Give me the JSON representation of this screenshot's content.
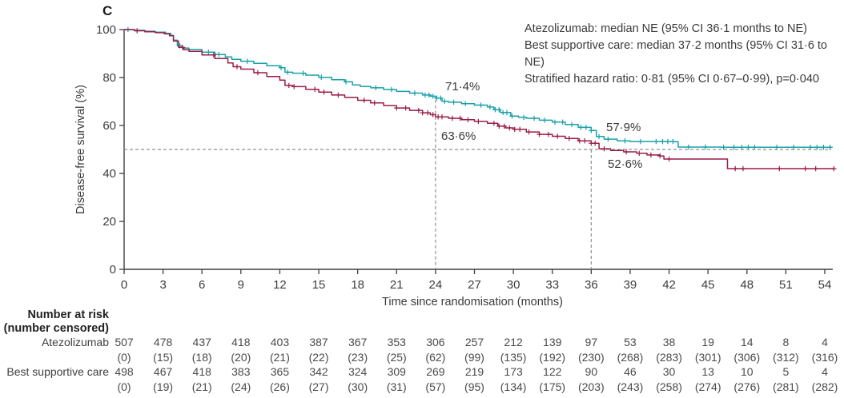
{
  "panel_label": "C",
  "colors": {
    "atezolizumab": "#18a0a8",
    "best_supportive_care": "#9c1c44",
    "axis": "#3f3f3f",
    "dashed_reference": "#8a9094",
    "text": "#3a3a3a"
  },
  "annotation": {
    "line1": "Atezolizumab: median NE (95% CI 36·1 months to NE)",
    "line2": "Best supportive care: median 37·2 months (95% CI 31·6 to NE)",
    "line3": "Stratified hazard ratio: 0·81 (95% CI 0·67–0·99), p=0·040"
  },
  "chart_data": {
    "type": "line",
    "subtype": "kaplan-meier-step",
    "title": "",
    "xlabel": "Time since randomisation (months)",
    "ylabel": "Disease-free survival (%)",
    "xlim": [
      0,
      54
    ],
    "ylim": [
      0,
      100
    ],
    "x_ticks": [
      0,
      3,
      6,
      9,
      12,
      15,
      18,
      21,
      24,
      27,
      30,
      33,
      36,
      39,
      42,
      45,
      48,
      51,
      54
    ],
    "y_ticks": [
      0,
      20,
      40,
      60,
      80,
      100
    ],
    "grid": false,
    "legend_position": "none",
    "reference_lines": {
      "horizontal_pct": 50,
      "vertical_months": [
        24,
        36
      ]
    },
    "landmarks": {
      "m24_atezo": "71·4%",
      "m24_bsc": "63·6%",
      "m36_atezo": "57·9%",
      "m36_bsc": "52·6%"
    },
    "series": [
      {
        "name": "Atezolizumab",
        "color": "#18a0a8",
        "points": [
          [
            0,
            100
          ],
          [
            0.8,
            99.7
          ],
          [
            1.6,
            99.3
          ],
          [
            2.4,
            98.9
          ],
          [
            3.2,
            98.4
          ],
          [
            3.6,
            97.6
          ],
          [
            3.8,
            95.6
          ],
          [
            4.1,
            93.2
          ],
          [
            4.5,
            92.3
          ],
          [
            5,
            91.7
          ],
          [
            6,
            90.6
          ],
          [
            7,
            89.6
          ],
          [
            7.8,
            88.6
          ],
          [
            8.3,
            87.6
          ],
          [
            9,
            86.8
          ],
          [
            10,
            85.9
          ],
          [
            11,
            84.9
          ],
          [
            12,
            84.1
          ],
          [
            12.4,
            82.2
          ],
          [
            13,
            81.8
          ],
          [
            14,
            81
          ],
          [
            15,
            80.1
          ],
          [
            16,
            79.1
          ],
          [
            17,
            78.2
          ],
          [
            17.6,
            76.9
          ],
          [
            18.2,
            76.3
          ],
          [
            19,
            75.7
          ],
          [
            20,
            75
          ],
          [
            21,
            74.2
          ],
          [
            22,
            73.5
          ],
          [
            23,
            72.7
          ],
          [
            23.6,
            72.2
          ],
          [
            24,
            71.4
          ],
          [
            24.5,
            70.1
          ],
          [
            25,
            69.7
          ],
          [
            26,
            69.1
          ],
          [
            27,
            68.5
          ],
          [
            28,
            67.7
          ],
          [
            28.5,
            66.6
          ],
          [
            29,
            65.4
          ],
          [
            29.8,
            63.9
          ],
          [
            30.4,
            63.4
          ],
          [
            31,
            63
          ],
          [
            32,
            62.2
          ],
          [
            33,
            61.4
          ],
          [
            34,
            60.4
          ],
          [
            35,
            59.2
          ],
          [
            36,
            57.9
          ],
          [
            36.4,
            55.4
          ],
          [
            37,
            54.3
          ],
          [
            38,
            53.6
          ],
          [
            39,
            53.3
          ],
          [
            42.5,
            53.2
          ],
          [
            42.7,
            51
          ],
          [
            46,
            50.9
          ],
          [
            54.6,
            50.9
          ]
        ],
        "censor_months": [
          0.3,
          4.3,
          6.5,
          7.3,
          9.5,
          12.1,
          12.6,
          13.8,
          15.2,
          17.1,
          19.4,
          20.6,
          22.4,
          23.2,
          23.5,
          23.8,
          24.1,
          24.4,
          24.7,
          25.4,
          26.3,
          27.5,
          28.2,
          28.6,
          28.9,
          29.2,
          29.5,
          29.9,
          30.8,
          31.6,
          32.4,
          33.2,
          33.8,
          34.5,
          35.2,
          35.6,
          36,
          36.6,
          37.3,
          38.6,
          39.8,
          41,
          41.5,
          41.9,
          42.3,
          43.5,
          44.8,
          46.2,
          47,
          47.6,
          48.1,
          48.6,
          50.3,
          51.6,
          52.9,
          53.4,
          53.9,
          54.4
        ]
      },
      {
        "name": "Best supportive care",
        "color": "#9c1c44",
        "points": [
          [
            0,
            100
          ],
          [
            0.8,
            99.5
          ],
          [
            1.6,
            99.1
          ],
          [
            2.4,
            98.7
          ],
          [
            3.1,
            98.2
          ],
          [
            3.5,
            97.4
          ],
          [
            3.8,
            95.2
          ],
          [
            4.2,
            92.6
          ],
          [
            4.6,
            91.6
          ],
          [
            5,
            90.9
          ],
          [
            6,
            89.4
          ],
          [
            7,
            87.9
          ],
          [
            8,
            86.1
          ],
          [
            8.4,
            84.5
          ],
          [
            9,
            83.5
          ],
          [
            10,
            82
          ],
          [
            11,
            80.4
          ],
          [
            12,
            78.9
          ],
          [
            12.4,
            76.7
          ],
          [
            13,
            76.2
          ],
          [
            14,
            75.1
          ],
          [
            15,
            73.9
          ],
          [
            16,
            72.7
          ],
          [
            17,
            71.7
          ],
          [
            18,
            70.5
          ],
          [
            19,
            69.4
          ],
          [
            20,
            68.3
          ],
          [
            21,
            67.3
          ],
          [
            22,
            66.3
          ],
          [
            23,
            65.3
          ],
          [
            23.6,
            64.5
          ],
          [
            24,
            63.6
          ],
          [
            25,
            63
          ],
          [
            26,
            62.4
          ],
          [
            27,
            61.7
          ],
          [
            28,
            60.9
          ],
          [
            28.8,
            59.7
          ],
          [
            29.4,
            59
          ],
          [
            30,
            58.4
          ],
          [
            31,
            57.3
          ],
          [
            32,
            56.3
          ],
          [
            33,
            55.5
          ],
          [
            34,
            54.6
          ],
          [
            35,
            53.6
          ],
          [
            36,
            52.6
          ],
          [
            36.6,
            50.3
          ],
          [
            37.5,
            49.6
          ],
          [
            38.5,
            49
          ],
          [
            39.5,
            48.4
          ],
          [
            40.3,
            47.7
          ],
          [
            41.3,
            47.3
          ],
          [
            41.6,
            46
          ],
          [
            46.2,
            46
          ],
          [
            46.5,
            42
          ],
          [
            54.7,
            42
          ]
        ],
        "censor_months": [
          1,
          4.5,
          6.9,
          8.7,
          10.3,
          12.7,
          13.1,
          14.7,
          15.4,
          16.5,
          18.5,
          19.3,
          21,
          21.7,
          22.7,
          23,
          23.4,
          23.8,
          24.2,
          24.5,
          25.3,
          25.9,
          26.5,
          27.3,
          28.5,
          28.9,
          29.3,
          29.7,
          30.1,
          30.5,
          31.2,
          32,
          32.7,
          33.4,
          34.3,
          35.1,
          35.5,
          36,
          36.3,
          37,
          38.7,
          39.7,
          40.6,
          41.3,
          42,
          47.1,
          47.7,
          50.5,
          52.5,
          53.3,
          54.7
        ]
      }
    ]
  },
  "risk_table": {
    "header_line1": "Number at risk",
    "header_line2": "(number censored)",
    "rows": [
      {
        "label": "Atezolizumab",
        "at_risk": [
          "507",
          "478",
          "437",
          "418",
          "403",
          "387",
          "367",
          "353",
          "306",
          "257",
          "212",
          "139",
          "97",
          "53",
          "38",
          "19",
          "14",
          "8",
          "4"
        ],
        "censored": [
          "(0)",
          "(15)",
          "(18)",
          "(20)",
          "(21)",
          "(22)",
          "(23)",
          "(25)",
          "(62)",
          "(99)",
          "(135)",
          "(192)",
          "(230)",
          "(268)",
          "(283)",
          "(301)",
          "(306)",
          "(312)",
          "(316)"
        ]
      },
      {
        "label": "Best supportive care",
        "at_risk": [
          "498",
          "467",
          "418",
          "383",
          "365",
          "342",
          "324",
          "309",
          "269",
          "219",
          "173",
          "122",
          "90",
          "46",
          "30",
          "13",
          "10",
          "5",
          "4"
        ],
        "censored": [
          "(0)",
          "(19)",
          "(21)",
          "(24)",
          "(26)",
          "(27)",
          "(30)",
          "(31)",
          "(57)",
          "(95)",
          "(134)",
          "(175)",
          "(203)",
          "(243)",
          "(258)",
          "(274)",
          "(276)",
          "(281)",
          "(282)"
        ]
      }
    ]
  }
}
